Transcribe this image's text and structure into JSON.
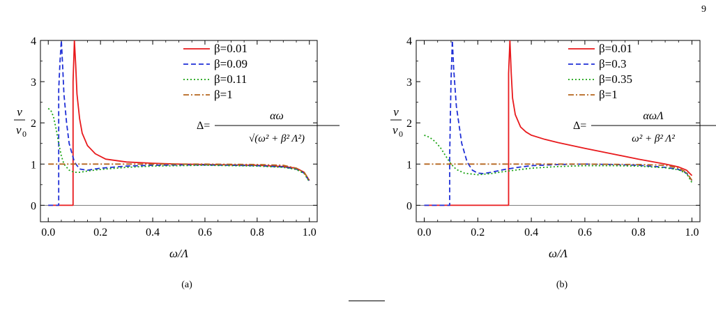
{
  "page": {
    "number": "9"
  },
  "chart_data": [
    {
      "type": "line",
      "panel_label": "(a)",
      "xlabel": "ω/Λ",
      "ylabel_num": "ν",
      "ylabel_den": "ν",
      "ylabel_den_sub": "0",
      "xlim": [
        -0.03,
        1.03
      ],
      "ylim": [
        -0.4,
        4
      ],
      "xticks": [
        0.0,
        0.2,
        0.4,
        0.6,
        0.8,
        1.0
      ],
      "xtick_labels": [
        "0.0",
        "0.2",
        "0.4",
        "0.6",
        "0.8",
        "1.0"
      ],
      "yticks": [
        0,
        1,
        2,
        3,
        4
      ],
      "ytick_labels": [
        "0",
        "1",
        "2",
        "3",
        "4"
      ],
      "legend_position": "top-right",
      "formula": {
        "lhs": "Δ=",
        "numerator": "αω",
        "denominator": "√(ω² + β² Λ²)"
      },
      "series": [
        {
          "name": "β=0.01",
          "color": "#e8191c",
          "dash": "solid",
          "x": [
            0,
            0.095,
            0.095,
            0.1,
            0.1,
            0.105,
            0.11,
            0.12,
            0.13,
            0.15,
            0.18,
            0.22,
            0.3,
            0.4,
            0.5,
            0.6,
            0.7,
            0.8,
            0.9,
            0.95,
            0.98,
            1.0
          ],
          "y": [
            0,
            0,
            3.0,
            4.0,
            4.0,
            3.4,
            2.7,
            2.1,
            1.75,
            1.45,
            1.25,
            1.12,
            1.05,
            1.02,
            1.0,
            0.99,
            0.98,
            0.97,
            0.94,
            0.9,
            0.8,
            0.6
          ]
        },
        {
          "name": "β=0.09",
          "color": "#1f2fd6",
          "dash": "dashed",
          "x": [
            0,
            0.04,
            0.04,
            0.045,
            0.05,
            0.055,
            0.06,
            0.07,
            0.08,
            0.1,
            0.12,
            0.15,
            0.2,
            0.3,
            0.4,
            0.5,
            0.6,
            0.7,
            0.8,
            0.9,
            0.95,
            0.98,
            1.0
          ],
          "y": [
            0,
            0,
            2.8,
            3.5,
            4.0,
            3.4,
            2.7,
            2.0,
            1.5,
            1.05,
            0.88,
            0.85,
            0.9,
            0.95,
            0.97,
            0.98,
            0.98,
            0.97,
            0.96,
            0.93,
            0.88,
            0.78,
            0.58
          ]
        },
        {
          "name": "β=0.11",
          "color": "#1aa313",
          "dash": "dotted",
          "x": [
            0,
            0.01,
            0.02,
            0.03,
            0.04,
            0.05,
            0.06,
            0.08,
            0.1,
            0.12,
            0.15,
            0.2,
            0.3,
            0.4,
            0.5,
            0.6,
            0.7,
            0.8,
            0.9,
            0.95,
            0.98,
            1.0
          ],
          "y": [
            2.35,
            2.3,
            2.15,
            1.85,
            1.5,
            1.2,
            1.0,
            0.85,
            0.8,
            0.8,
            0.83,
            0.87,
            0.92,
            0.95,
            0.96,
            0.97,
            0.96,
            0.95,
            0.92,
            0.87,
            0.77,
            0.57
          ]
        },
        {
          "name": "β=1",
          "color": "#b5651d",
          "dash": "dashdot",
          "x": [
            0,
            0.2,
            0.4,
            0.6,
            0.8,
            0.9,
            0.95,
            0.98,
            1.0
          ],
          "y": [
            1.0,
            1.0,
            1.0,
            1.0,
            0.99,
            0.97,
            0.9,
            0.8,
            0.6
          ]
        }
      ]
    },
    {
      "type": "line",
      "panel_label": "(b)",
      "xlabel": "ω/Λ",
      "ylabel_num": "ν",
      "ylabel_den": "ν",
      "ylabel_den_sub": "0",
      "xlim": [
        -0.03,
        1.03
      ],
      "ylim": [
        -0.4,
        4
      ],
      "xticks": [
        0.0,
        0.2,
        0.4,
        0.6,
        0.8,
        1.0
      ],
      "xtick_labels": [
        "0.0",
        "0.2",
        "0.4",
        "0.6",
        "0.8",
        "1.0"
      ],
      "yticks": [
        0,
        1,
        2,
        3,
        4
      ],
      "ytick_labels": [
        "0",
        "1",
        "2",
        "3",
        "4"
      ],
      "legend_position": "top-right",
      "formula": {
        "lhs": "Δ=",
        "numerator": "αωΛ",
        "denominator": "ω² + β² Λ²"
      },
      "series": [
        {
          "name": "β=0.01",
          "color": "#e8191c",
          "dash": "solid",
          "x": [
            0,
            0.315,
            0.315,
            0.32,
            0.325,
            0.33,
            0.34,
            0.36,
            0.38,
            0.4,
            0.45,
            0.5,
            0.6,
            0.7,
            0.8,
            0.9,
            0.95,
            0.98,
            1.0
          ],
          "y": [
            0,
            0,
            3.2,
            4.0,
            3.2,
            2.6,
            2.2,
            1.9,
            1.78,
            1.7,
            1.6,
            1.52,
            1.38,
            1.25,
            1.12,
            1.0,
            0.93,
            0.85,
            0.72
          ]
        },
        {
          "name": "β=0.3",
          "color": "#1f2fd6",
          "dash": "dashed",
          "x": [
            0,
            0.095,
            0.095,
            0.1,
            0.105,
            0.11,
            0.12,
            0.14,
            0.16,
            0.18,
            0.2,
            0.22,
            0.25,
            0.3,
            0.35,
            0.4,
            0.5,
            0.6,
            0.7,
            0.8,
            0.9,
            0.95,
            0.98,
            1.0
          ],
          "y": [
            0,
            0,
            1.2,
            3.0,
            4.0,
            3.3,
            2.4,
            1.5,
            1.05,
            0.85,
            0.78,
            0.77,
            0.8,
            0.87,
            0.92,
            0.96,
            0.99,
            1.0,
            0.99,
            0.97,
            0.92,
            0.87,
            0.78,
            0.6
          ]
        },
        {
          "name": "β=0.35",
          "color": "#1aa313",
          "dash": "dotted",
          "x": [
            0,
            0.02,
            0.04,
            0.06,
            0.08,
            0.1,
            0.12,
            0.15,
            0.2,
            0.25,
            0.3,
            0.4,
            0.5,
            0.6,
            0.7,
            0.8,
            0.9,
            0.95,
            0.98,
            1.0
          ],
          "y": [
            1.7,
            1.65,
            1.55,
            1.4,
            1.2,
            1.0,
            0.87,
            0.78,
            0.74,
            0.77,
            0.82,
            0.9,
            0.94,
            0.96,
            0.96,
            0.95,
            0.91,
            0.86,
            0.77,
            0.55
          ]
        },
        {
          "name": "β=1",
          "color": "#b5651d",
          "dash": "dashdot",
          "x": [
            0,
            0.2,
            0.4,
            0.6,
            0.8,
            0.9,
            0.95,
            0.98,
            1.0
          ],
          "y": [
            1.0,
            1.0,
            1.0,
            1.0,
            0.99,
            0.97,
            0.9,
            0.8,
            0.6
          ]
        }
      ]
    }
  ]
}
